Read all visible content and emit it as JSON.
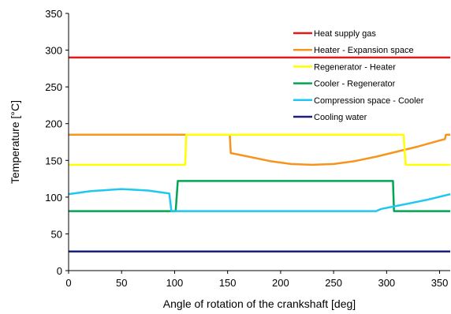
{
  "chart_data": {
    "type": "line",
    "title": "",
    "xlabel": "Angle of rotation of the crankshaft [deg]",
    "ylabel": "Temperature [°C]",
    "xlim": [
      0,
      360
    ],
    "ylim": [
      0,
      350
    ],
    "xticks": [
      0,
      50,
      100,
      150,
      200,
      250,
      300,
      350
    ],
    "yticks": [
      0,
      50,
      100,
      150,
      200,
      250,
      300,
      350
    ],
    "grid": false,
    "legend_position": "top-right",
    "series": [
      {
        "name": "Heat supply gas",
        "color": "#e31a1c",
        "points": [
          [
            0,
            290
          ],
          [
            360,
            290
          ]
        ]
      },
      {
        "name": "Heater - Expansion space",
        "color": "#f7941d",
        "points": [
          [
            0,
            185
          ],
          [
            152,
            185
          ],
          [
            153,
            160
          ],
          [
            170,
            155
          ],
          [
            190,
            149
          ],
          [
            210,
            145
          ],
          [
            230,
            144
          ],
          [
            250,
            145
          ],
          [
            270,
            149
          ],
          [
            290,
            155
          ],
          [
            310,
            162
          ],
          [
            330,
            169
          ],
          [
            350,
            177
          ],
          [
            355,
            179
          ],
          [
            356,
            185
          ],
          [
            360,
            185
          ]
        ]
      },
      {
        "name": "Regenerator - Heater",
        "color": "#ffff00",
        "points": [
          [
            0,
            144
          ],
          [
            110,
            144
          ],
          [
            111,
            185
          ],
          [
            316,
            185
          ],
          [
            318,
            144
          ],
          [
            360,
            144
          ]
        ]
      },
      {
        "name": "Cooler - Regenerator",
        "color": "#00a651",
        "points": [
          [
            0,
            81
          ],
          [
            101,
            81
          ],
          [
            103,
            122
          ],
          [
            306,
            122
          ],
          [
            307,
            81
          ],
          [
            360,
            81
          ]
        ]
      },
      {
        "name": "Compression space - Cooler",
        "color": "#1ec8f0",
        "points": [
          [
            0,
            104
          ],
          [
            20,
            108
          ],
          [
            50,
            111
          ],
          [
            75,
            109
          ],
          [
            95,
            105
          ],
          [
            97,
            81
          ],
          [
            290,
            81
          ],
          [
            295,
            84
          ],
          [
            320,
            91
          ],
          [
            340,
            97
          ],
          [
            360,
            104
          ]
        ]
      },
      {
        "name": "Cooling water",
        "color": "#1b1f7a",
        "points": [
          [
            0,
            26
          ],
          [
            360,
            26
          ]
        ]
      }
    ]
  }
}
